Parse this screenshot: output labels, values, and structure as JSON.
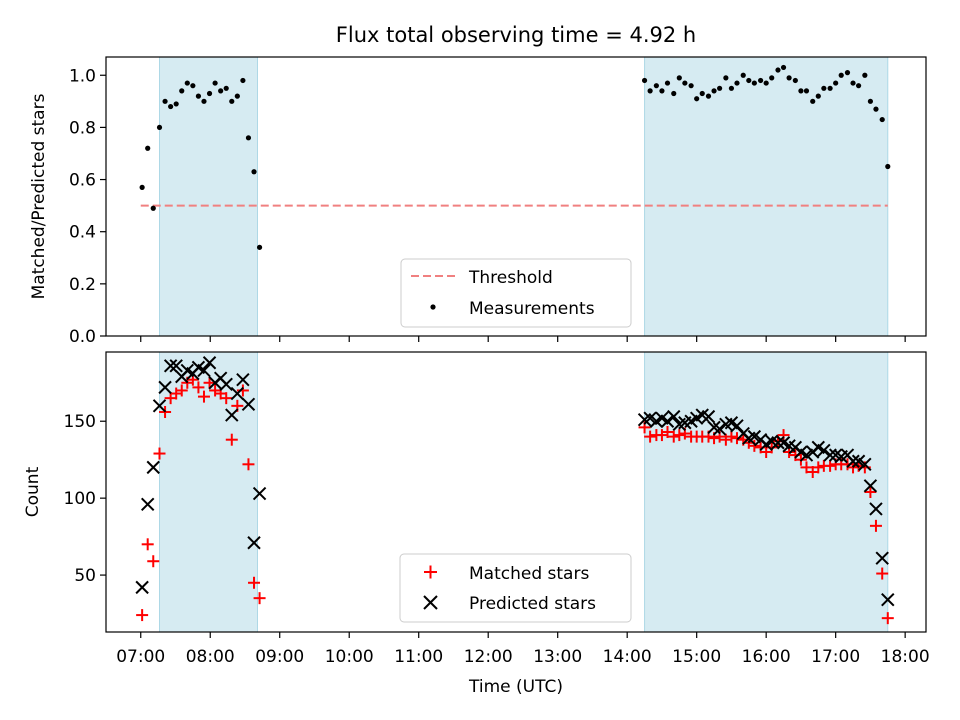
{
  "figure": {
    "title": "Flux total observing time = 4.92 h",
    "xlabel": "Time (UTC)"
  },
  "chart_data": [
    {
      "type": "scatter",
      "title": "Flux total observing time = 4.92 h",
      "ylabel": "Matched/Predicted stars",
      "xlabel": "Time (UTC)",
      "x_unit": "hours UTC",
      "xlim": [
        6.5,
        18.3
      ],
      "ylim": [
        0,
        1.07
      ],
      "y_ticks": [
        "0.0",
        "0.2",
        "0.4",
        "0.6",
        "0.8",
        "1.0"
      ],
      "x_ticks": [
        "07:00",
        "08:00",
        "09:00",
        "10:00",
        "11:00",
        "12:00",
        "13:00",
        "14:00",
        "15:00",
        "16:00",
        "17:00",
        "18:00"
      ],
      "shaded_intervals": [
        [
          7.27,
          8.68
        ],
        [
          14.25,
          17.75
        ]
      ],
      "threshold": {
        "name": "Threshold",
        "value": 0.5,
        "x_range": [
          7.0,
          17.75
        ],
        "color": "#f08080",
        "style": "dashed"
      },
      "legend": {
        "placement": "lower center",
        "entries": [
          "Threshold",
          "Measurements"
        ]
      },
      "series": [
        {
          "name": "Measurements",
          "color": "#000000",
          "marker": "dot",
          "points": [
            [
              7.02,
              0.57
            ],
            [
              7.1,
              0.72
            ],
            [
              7.18,
              0.49
            ],
            [
              7.27,
              0.8
            ],
            [
              7.35,
              0.9
            ],
            [
              7.43,
              0.88
            ],
            [
              7.51,
              0.89
            ],
            [
              7.59,
              0.94
            ],
            [
              7.67,
              0.97
            ],
            [
              7.75,
              0.96
            ],
            [
              7.83,
              0.92
            ],
            [
              7.91,
              0.9
            ],
            [
              7.99,
              0.93
            ],
            [
              8.07,
              0.97
            ],
            [
              8.15,
              0.94
            ],
            [
              8.23,
              0.95
            ],
            [
              8.31,
              0.9
            ],
            [
              8.39,
              0.92
            ],
            [
              8.47,
              0.98
            ],
            [
              8.55,
              0.76
            ],
            [
              8.63,
              0.63
            ],
            [
              8.71,
              0.34
            ],
            [
              14.25,
              0.98
            ],
            [
              14.33,
              0.94
            ],
            [
              14.42,
              0.96
            ],
            [
              14.5,
              0.94
            ],
            [
              14.58,
              0.97
            ],
            [
              14.67,
              0.93
            ],
            [
              14.75,
              0.99
            ],
            [
              14.83,
              0.97
            ],
            [
              14.92,
              0.96
            ],
            [
              15.0,
              0.91
            ],
            [
              15.08,
              0.93
            ],
            [
              15.17,
              0.92
            ],
            [
              15.25,
              0.94
            ],
            [
              15.33,
              0.95
            ],
            [
              15.42,
              0.99
            ],
            [
              15.5,
              0.95
            ],
            [
              15.58,
              0.97
            ],
            [
              15.67,
              1.0
            ],
            [
              15.75,
              0.98
            ],
            [
              15.83,
              0.97
            ],
            [
              15.92,
              0.98
            ],
            [
              16.0,
              0.97
            ],
            [
              16.08,
              0.99
            ],
            [
              16.17,
              1.02
            ],
            [
              16.25,
              1.03
            ],
            [
              16.33,
              0.99
            ],
            [
              16.42,
              0.98
            ],
            [
              16.5,
              0.94
            ],
            [
              16.58,
              0.94
            ],
            [
              16.67,
              0.9
            ],
            [
              16.75,
              0.92
            ],
            [
              16.83,
              0.95
            ],
            [
              16.92,
              0.95
            ],
            [
              17.0,
              0.97
            ],
            [
              17.08,
              1.0
            ],
            [
              17.17,
              1.01
            ],
            [
              17.25,
              0.97
            ],
            [
              17.33,
              0.96
            ],
            [
              17.42,
              1.0
            ],
            [
              17.5,
              0.9
            ],
            [
              17.58,
              0.87
            ],
            [
              17.67,
              0.83
            ],
            [
              17.75,
              0.65
            ]
          ]
        }
      ]
    },
    {
      "type": "scatter",
      "ylabel": "Count",
      "xlabel": "Time (UTC)",
      "x_unit": "hours UTC",
      "xlim": [
        6.5,
        18.3
      ],
      "ylim": [
        13,
        195
      ],
      "y_ticks": [
        "50",
        "100",
        "150"
      ],
      "x_ticks": [
        "07:00",
        "08:00",
        "09:00",
        "10:00",
        "11:00",
        "12:00",
        "13:00",
        "14:00",
        "15:00",
        "16:00",
        "17:00",
        "18:00"
      ],
      "shaded_intervals": [
        [
          7.27,
          8.68
        ],
        [
          14.25,
          17.75
        ]
      ],
      "legend": {
        "placement": "lower center",
        "entries": [
          "Matched stars",
          "Predicted stars"
        ]
      },
      "series": [
        {
          "name": "Matched stars",
          "color": "#ff0000",
          "marker": "plus",
          "points": [
            [
              7.02,
              24
            ],
            [
              7.1,
              70
            ],
            [
              7.18,
              59
            ],
            [
              7.27,
              129
            ],
            [
              7.35,
              156
            ],
            [
              7.43,
              165
            ],
            [
              7.51,
              168
            ],
            [
              7.59,
              170
            ],
            [
              7.67,
              175
            ],
            [
              7.75,
              177
            ],
            [
              7.83,
              172
            ],
            [
              7.91,
              166
            ],
            [
              7.99,
              175
            ],
            [
              8.07,
              170
            ],
            [
              8.15,
              168
            ],
            [
              8.23,
              165
            ],
            [
              8.31,
              138
            ],
            [
              8.39,
              160
            ],
            [
              8.47,
              170
            ],
            [
              8.55,
              122
            ],
            [
              8.63,
              45
            ],
            [
              8.71,
              35
            ],
            [
              14.25,
              146
            ],
            [
              14.33,
              140
            ],
            [
              14.42,
              141
            ],
            [
              14.5,
              141
            ],
            [
              14.58,
              143
            ],
            [
              14.67,
              140
            ],
            [
              14.75,
              141
            ],
            [
              14.83,
              142
            ],
            [
              14.92,
              140
            ],
            [
              15.0,
              140
            ],
            [
              15.08,
              140
            ],
            [
              15.17,
              140
            ],
            [
              15.25,
              139
            ],
            [
              15.33,
              140
            ],
            [
              15.42,
              138
            ],
            [
              15.5,
              140
            ],
            [
              15.58,
              139
            ],
            [
              15.67,
              138
            ],
            [
              15.75,
              136
            ],
            [
              15.83,
              134
            ],
            [
              15.92,
              133
            ],
            [
              16.0,
              130
            ],
            [
              16.08,
              133
            ],
            [
              16.17,
              137
            ],
            [
              16.25,
              141
            ],
            [
              16.33,
              130
            ],
            [
              16.42,
              128
            ],
            [
              16.5,
              125
            ],
            [
              16.58,
              120
            ],
            [
              16.67,
              117
            ],
            [
              16.75,
              120
            ],
            [
              16.83,
              121
            ],
            [
              16.92,
              121
            ],
            [
              17.0,
              122
            ],
            [
              17.08,
              122
            ],
            [
              17.17,
              122
            ],
            [
              17.25,
              120
            ],
            [
              17.33,
              121
            ],
            [
              17.42,
              120
            ],
            [
              17.5,
              104
            ],
            [
              17.58,
              82
            ],
            [
              17.67,
              51
            ],
            [
              17.75,
              22
            ]
          ]
        },
        {
          "name": "Predicted stars",
          "color": "#000000",
          "marker": "x",
          "points": [
            [
              7.02,
              42
            ],
            [
              7.1,
              96
            ],
            [
              7.18,
              120
            ],
            [
              7.27,
              160
            ],
            [
              7.35,
              172
            ],
            [
              7.43,
              186
            ],
            [
              7.51,
              186
            ],
            [
              7.59,
              179
            ],
            [
              7.67,
              183
            ],
            [
              7.75,
              181
            ],
            [
              7.83,
              185
            ],
            [
              7.91,
              183
            ],
            [
              7.99,
              188
            ],
            [
              8.07,
              175
            ],
            [
              8.15,
              178
            ],
            [
              8.23,
              174
            ],
            [
              8.31,
              154
            ],
            [
              8.39,
              168
            ],
            [
              8.47,
              177
            ],
            [
              8.55,
              161
            ],
            [
              8.63,
              71
            ],
            [
              8.71,
              103
            ],
            [
              14.25,
              151
            ],
            [
              14.33,
              152
            ],
            [
              14.42,
              150
            ],
            [
              14.5,
              152
            ],
            [
              14.58,
              150
            ],
            [
              14.67,
              153
            ],
            [
              14.75,
              148
            ],
            [
              14.83,
              149
            ],
            [
              14.92,
              150
            ],
            [
              15.0,
              152
            ],
            [
              15.08,
              154
            ],
            [
              15.17,
              153
            ],
            [
              15.25,
              146
            ],
            [
              15.33,
              145
            ],
            [
              15.42,
              148
            ],
            [
              15.5,
              149
            ],
            [
              15.58,
              147
            ],
            [
              15.67,
              142
            ],
            [
              15.75,
              139
            ],
            [
              15.83,
              140
            ],
            [
              15.92,
              138
            ],
            [
              16.0,
              135
            ],
            [
              16.08,
              137
            ],
            [
              16.17,
              136
            ],
            [
              16.25,
              136
            ],
            [
              16.33,
              134
            ],
            [
              16.42,
              133
            ],
            [
              16.5,
              130
            ],
            [
              16.58,
              128
            ],
            [
              16.67,
              130
            ],
            [
              16.75,
              133
            ],
            [
              16.83,
              131
            ],
            [
              16.92,
              128
            ],
            [
              17.0,
              128
            ],
            [
              17.08,
              127
            ],
            [
              17.17,
              128
            ],
            [
              17.25,
              124
            ],
            [
              17.33,
              124
            ],
            [
              17.42,
              122
            ],
            [
              17.5,
              108
            ],
            [
              17.58,
              93
            ],
            [
              17.67,
              61
            ],
            [
              17.75,
              34
            ]
          ]
        }
      ]
    }
  ]
}
